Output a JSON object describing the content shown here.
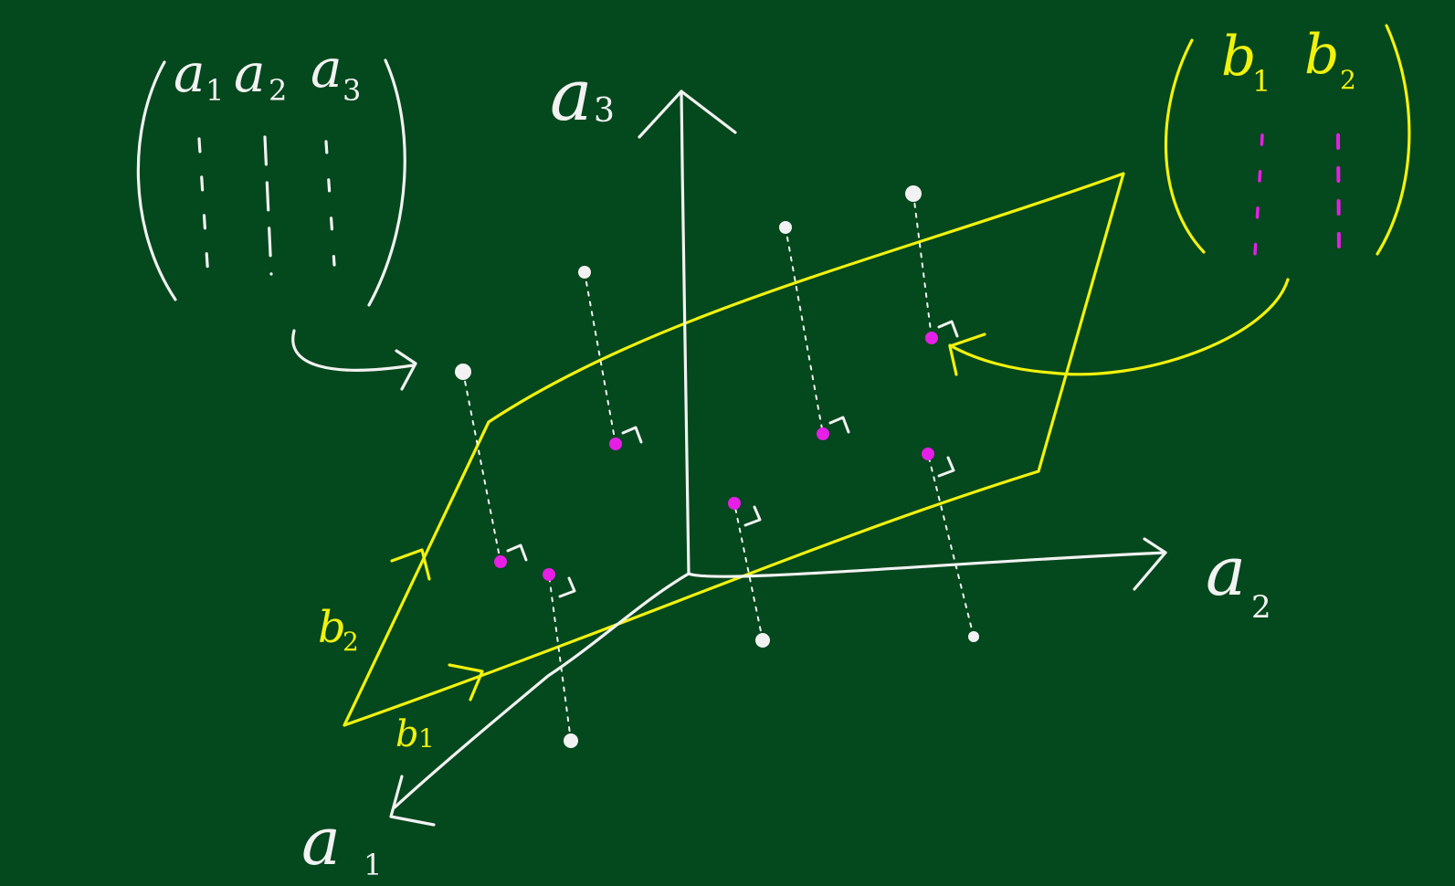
{
  "colors": {
    "board": "#04481d",
    "chalk_white": "#f2f2f2",
    "chalk_yellow": "#f2f20c",
    "projection_magenta": "#e61ee6"
  },
  "matrix_a": {
    "columns": [
      "a",
      "a",
      "a"
    ],
    "subscripts": [
      "1",
      "2",
      "3"
    ]
  },
  "matrix_b": {
    "columns": [
      "b",
      "b"
    ],
    "subscripts": [
      "1",
      "2"
    ]
  },
  "axes": {
    "a1": {
      "letter": "a",
      "subscript": "1"
    },
    "a2": {
      "letter": "a",
      "subscript": "2"
    },
    "a3": {
      "letter": "a",
      "subscript": "3"
    }
  },
  "basis": {
    "b1": {
      "letter": "b",
      "subscript": "1"
    },
    "b2": {
      "letter": "b",
      "subscript": "2"
    }
  },
  "icons": [
    "arrow-icon",
    "right-angle-icon"
  ]
}
